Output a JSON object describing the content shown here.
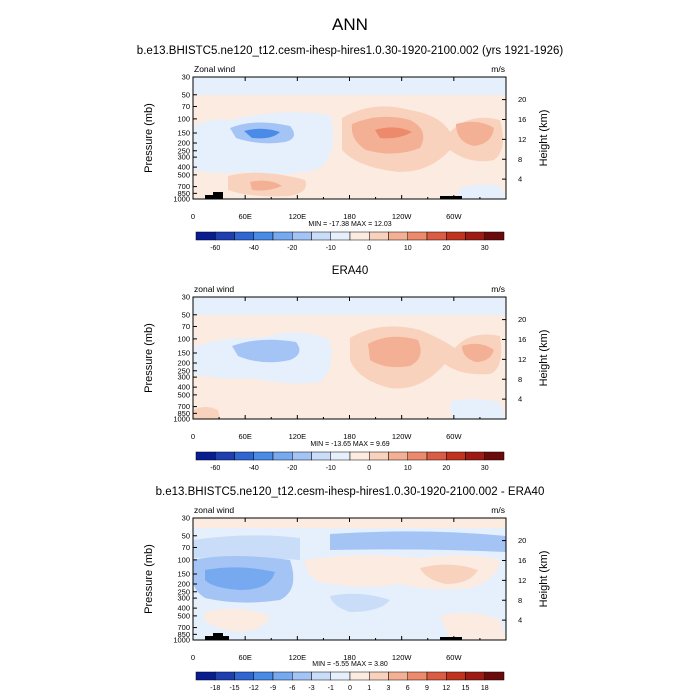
{
  "page": {
    "title": "ANN"
  },
  "colors": {
    "wind_scale": [
      "#081d8f",
      "#1f3fb0",
      "#2f66d4",
      "#4b8be8",
      "#77a9f0",
      "#a3c4f5",
      "#c9dcf8",
      "#e6effc",
      "#fcebe0",
      "#f9d2bd",
      "#f4b094",
      "#ec8a6b",
      "#db5c44",
      "#c0341f",
      "#9e1b14",
      "#6a0a0a"
    ],
    "diff_scale": [
      "#081d8f",
      "#1f3fb0",
      "#2f66d4",
      "#4b8be8",
      "#77a9f0",
      "#a3c4f5",
      "#c9dcf8",
      "#e6effc",
      "#fcebe0",
      "#f9d2bd",
      "#f4b094",
      "#ec8a6b",
      "#db5c44",
      "#c0341f",
      "#9e1b14",
      "#6a0a0a"
    ]
  },
  "chart_data": [
    {
      "type": "heatmap",
      "title": "b.e13.BHISTC5.ne120_t12.cesm-ihesp-hires1.0.30-1920-2100.002 (yrs 1921-1926)",
      "left_label": "Zonal wind",
      "right_label": "m/s",
      "xlabel": "",
      "ylabel": "Pressure (mb)",
      "ylabel_right": "Height (km)",
      "x_ticks": [
        "0",
        "60E",
        "120E",
        "180",
        "120W",
        "60W"
      ],
      "x_tick_values": [
        0,
        60,
        120,
        180,
        240,
        300
      ],
      "xlim": [
        0,
        360
      ],
      "y_ticks": [
        "30",
        "50",
        "70",
        "100",
        "150",
        "200",
        "250",
        "300",
        "400",
        "500",
        "700",
        "850",
        "1000"
      ],
      "y_tick_values": [
        30,
        50,
        70,
        100,
        150,
        200,
        250,
        300,
        400,
        500,
        700,
        850,
        1000
      ],
      "ylim": [
        1000,
        30
      ],
      "height_ticks": [
        "20",
        "16",
        "12",
        "8",
        "4"
      ],
      "height_tick_values": [
        20,
        16,
        12,
        8,
        4
      ],
      "min_max_text": "MIN = -17.38  MAX =  12.03",
      "min": -17.38,
      "max": 12.03,
      "colorbar_labels": [
        "-60",
        "-40",
        "-20",
        "-10",
        "0",
        "10",
        "20",
        "30"
      ],
      "colorbar_levels": [
        -70,
        -60,
        -50,
        -40,
        -30,
        -20,
        -15,
        -10,
        -5,
        0,
        5,
        10,
        15,
        20,
        25,
        30,
        35
      ]
    },
    {
      "type": "heatmap",
      "title": "ERA40",
      "left_label": "zonal wind",
      "right_label": "m/s",
      "xlabel": "",
      "ylabel": "Pressure (mb)",
      "ylabel_right": "Height (km)",
      "x_ticks": [
        "0",
        "60E",
        "120E",
        "180",
        "120W",
        "60W"
      ],
      "x_tick_values": [
        0,
        60,
        120,
        180,
        240,
        300
      ],
      "xlim": [
        0,
        360
      ],
      "y_ticks": [
        "30",
        "50",
        "70",
        "100",
        "150",
        "200",
        "250",
        "300",
        "400",
        "500",
        "700",
        "850",
        "1000"
      ],
      "y_tick_values": [
        30,
        50,
        70,
        100,
        150,
        200,
        250,
        300,
        400,
        500,
        700,
        850,
        1000
      ],
      "ylim": [
        1000,
        30
      ],
      "height_ticks": [
        "20",
        "16",
        "12",
        "8",
        "4"
      ],
      "height_tick_values": [
        20,
        16,
        12,
        8,
        4
      ],
      "min_max_text": "MIN = -13.65  MAX =  9.69",
      "min": -13.65,
      "max": 9.69,
      "colorbar_labels": [
        "-60",
        "-40",
        "-20",
        "-10",
        "0",
        "10",
        "20",
        "30"
      ],
      "colorbar_levels": [
        -70,
        -60,
        -50,
        -40,
        -30,
        -20,
        -15,
        -10,
        -5,
        0,
        5,
        10,
        15,
        20,
        25,
        30,
        35
      ]
    },
    {
      "type": "heatmap",
      "title": "b.e13.BHISTC5.ne120_t12.cesm-ihesp-hires1.0.30-1920-2100.002 - ERA40",
      "left_label": "zonal wind",
      "right_label": "m/s",
      "xlabel": "",
      "ylabel": "Pressure (mb)",
      "ylabel_right": "Height (km)",
      "x_ticks": [
        "0",
        "60E",
        "120E",
        "180",
        "120W",
        "60W"
      ],
      "x_tick_values": [
        0,
        60,
        120,
        180,
        240,
        300
      ],
      "xlim": [
        0,
        360
      ],
      "y_ticks": [
        "30",
        "50",
        "70",
        "100",
        "150",
        "200",
        "250",
        "300",
        "400",
        "500",
        "700",
        "850",
        "1000"
      ],
      "y_tick_values": [
        30,
        50,
        70,
        100,
        150,
        200,
        250,
        300,
        400,
        500,
        700,
        850,
        1000
      ],
      "ylim": [
        1000,
        30
      ],
      "height_ticks": [
        "20",
        "16",
        "12",
        "8",
        "4"
      ],
      "height_tick_values": [
        20,
        16,
        12,
        8,
        4
      ],
      "min_max_text": "MIN = -5.55  MAX =  3.80",
      "min": -5.55,
      "max": 3.8,
      "colorbar_labels": [
        "-18",
        "-15",
        "-12",
        "-9",
        "-6",
        "-3",
        "-1",
        "0",
        "1",
        "3",
        "6",
        "9",
        "12",
        "15",
        "18"
      ],
      "colorbar_levels": [
        -21,
        -18,
        -15,
        -12,
        -9,
        -6,
        -3,
        -1,
        0,
        1,
        3,
        6,
        9,
        12,
        15,
        18,
        21
      ]
    }
  ]
}
